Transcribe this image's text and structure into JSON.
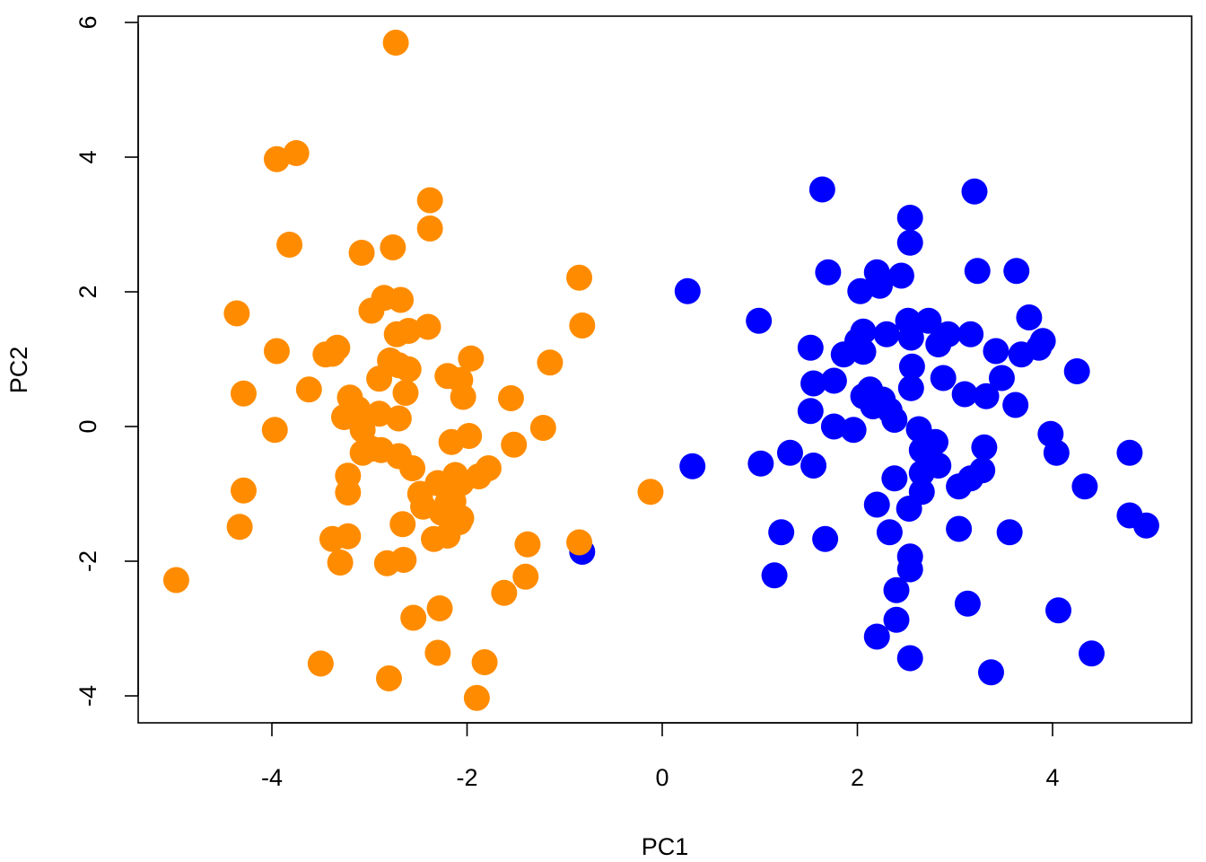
{
  "chart_data": {
    "type": "scatter",
    "title": "",
    "xlabel": "PC1",
    "ylabel": "PC2",
    "xlim": [
      -5.2,
      5.2
    ],
    "ylim": [
      -4.4,
      6.2
    ],
    "x_ticks": [
      -4,
      -2,
      0,
      2,
      4
    ],
    "y_ticks": [
      -4,
      -2,
      0,
      2,
      4,
      6
    ],
    "x_tick_labels": [
      "-4",
      "-2",
      "0",
      "2",
      "4"
    ],
    "y_tick_labels": [
      "-4",
      "-2",
      "0",
      "2",
      "4",
      "6"
    ],
    "grid": false,
    "legend": "none",
    "series": [
      {
        "color": "#0000ff",
        "points": [
          [
            -0.82,
            -1.86
          ],
          [
            0.26,
            2.01
          ],
          [
            0.31,
            -0.59
          ],
          [
            0.99,
            1.57
          ],
          [
            1.01,
            -0.55
          ],
          [
            1.15,
            -2.21
          ],
          [
            1.22,
            -1.57
          ],
          [
            1.31,
            -0.39
          ],
          [
            1.52,
            1.17
          ],
          [
            1.55,
            0.64
          ],
          [
            1.52,
            0.23
          ],
          [
            1.55,
            -0.58
          ],
          [
            1.64,
            3.52
          ],
          [
            1.7,
            2.29
          ],
          [
            1.67,
            -1.67
          ],
          [
            1.76,
            0.68
          ],
          [
            1.76,
            0.0
          ],
          [
            1.86,
            1.07
          ],
          [
            1.96,
            -0.05
          ],
          [
            2.0,
            1.27
          ],
          [
            2.03,
            2.01
          ],
          [
            2.06,
            1.11
          ],
          [
            2.06,
            1.41
          ],
          [
            2.06,
            0.45
          ],
          [
            2.13,
            0.55
          ],
          [
            2.16,
            0.3
          ],
          [
            2.2,
            2.29
          ],
          [
            2.23,
            2.09
          ],
          [
            2.2,
            -1.16
          ],
          [
            2.2,
            -3.12
          ],
          [
            2.26,
            0.4
          ],
          [
            2.3,
            1.37
          ],
          [
            2.33,
            0.24
          ],
          [
            2.33,
            -1.57
          ],
          [
            2.38,
            -0.77
          ],
          [
            2.38,
            0.1
          ],
          [
            2.4,
            -2.43
          ],
          [
            2.4,
            -2.87
          ],
          [
            2.45,
            2.24
          ],
          [
            2.52,
            1.57
          ],
          [
            2.54,
            3.1
          ],
          [
            2.54,
            2.73
          ],
          [
            2.55,
            1.32
          ],
          [
            2.55,
            0.57
          ],
          [
            2.56,
            0.89
          ],
          [
            2.53,
            -1.22
          ],
          [
            2.54,
            -1.93
          ],
          [
            2.54,
            -2.12
          ],
          [
            2.54,
            -3.44
          ],
          [
            2.63,
            -0.04
          ],
          [
            2.66,
            -0.35
          ],
          [
            2.66,
            -0.69
          ],
          [
            2.66,
            -0.97
          ],
          [
            2.73,
            1.57
          ],
          [
            2.8,
            -0.23
          ],
          [
            2.83,
            1.22
          ],
          [
            2.83,
            -0.58
          ],
          [
            2.88,
            0.72
          ],
          [
            2.93,
            1.37
          ],
          [
            3.04,
            -0.89
          ],
          [
            3.04,
            -1.52
          ],
          [
            3.1,
            0.48
          ],
          [
            3.13,
            -2.63
          ],
          [
            3.16,
            1.37
          ],
          [
            3.16,
            -0.77
          ],
          [
            3.2,
            3.49
          ],
          [
            3.23,
            2.31
          ],
          [
            3.28,
            -0.65
          ],
          [
            3.3,
            -0.31
          ],
          [
            3.32,
            0.45
          ],
          [
            3.37,
            -3.65
          ],
          [
            3.42,
            1.12
          ],
          [
            3.48,
            0.72
          ],
          [
            3.56,
            -1.57
          ],
          [
            3.63,
            2.31
          ],
          [
            3.62,
            0.32
          ],
          [
            3.68,
            1.07
          ],
          [
            3.76,
            1.62
          ],
          [
            3.86,
            1.17
          ],
          [
            3.9,
            1.27
          ],
          [
            3.98,
            -0.11
          ],
          [
            4.04,
            -0.39
          ],
          [
            4.06,
            -2.73
          ],
          [
            4.25,
            0.82
          ],
          [
            4.33,
            -0.89
          ],
          [
            4.4,
            -3.37
          ],
          [
            4.79,
            -0.39
          ],
          [
            4.79,
            -1.32
          ],
          [
            4.96,
            -1.47
          ]
        ]
      },
      {
        "color": "#ff8c00",
        "points": [
          [
            -4.98,
            -2.28
          ],
          [
            -4.36,
            1.68
          ],
          [
            -4.33,
            -1.49
          ],
          [
            -4.29,
            0.49
          ],
          [
            -4.29,
            -0.95
          ],
          [
            -3.95,
            3.97
          ],
          [
            -3.95,
            1.12
          ],
          [
            -3.97,
            -0.05
          ],
          [
            -3.75,
            4.06
          ],
          [
            -3.82,
            2.7
          ],
          [
            -3.62,
            0.55
          ],
          [
            -3.5,
            -3.52
          ],
          [
            -3.45,
            1.07
          ],
          [
            -3.38,
            1.08
          ],
          [
            -3.33,
            1.17
          ],
          [
            -3.38,
            -1.67
          ],
          [
            -3.3,
            -2.02
          ],
          [
            -3.22,
            -1.63
          ],
          [
            -3.26,
            0.14
          ],
          [
            -3.2,
            0.43
          ],
          [
            -3.22,
            -0.73
          ],
          [
            -3.22,
            -0.98
          ],
          [
            -3.12,
            0.26
          ],
          [
            -3.07,
            -0.05
          ],
          [
            -3.07,
            -0.39
          ],
          [
            -3.08,
            2.58
          ],
          [
            -2.98,
            -0.33
          ],
          [
            -2.98,
            1.72
          ],
          [
            -2.9,
            0.71
          ],
          [
            -2.9,
            0.19
          ],
          [
            -2.88,
            -0.35
          ],
          [
            -2.85,
            1.91
          ],
          [
            -2.82,
            -2.03
          ],
          [
            -2.8,
            -3.74
          ],
          [
            -2.79,
            0.98
          ],
          [
            -2.76,
            2.66
          ],
          [
            -2.73,
            5.7
          ],
          [
            -2.72,
            1.37
          ],
          [
            -2.68,
            1.88
          ],
          [
            -2.7,
            0.91
          ],
          [
            -2.7,
            0.12
          ],
          [
            -2.7,
            -0.44
          ],
          [
            -2.66,
            -1.45
          ],
          [
            -2.65,
            -1.98
          ],
          [
            -2.63,
            0.5
          ],
          [
            -2.6,
            0.85
          ],
          [
            -2.6,
            1.42
          ],
          [
            -2.56,
            -0.62
          ],
          [
            -2.55,
            -2.84
          ],
          [
            -2.48,
            -1.0
          ],
          [
            -2.45,
            -1.19
          ],
          [
            -2.4,
            1.48
          ],
          [
            -2.38,
            3.36
          ],
          [
            -2.38,
            2.94
          ],
          [
            -2.34,
            -1.67
          ],
          [
            -2.3,
            -3.36
          ],
          [
            -2.28,
            -2.7
          ],
          [
            -2.26,
            -1.28
          ],
          [
            -2.3,
            -0.84
          ],
          [
            -2.2,
            -1.13
          ],
          [
            -2.2,
            -1.62
          ],
          [
            -2.2,
            0.75
          ],
          [
            -2.16,
            -0.23
          ],
          [
            -2.14,
            -1.11
          ],
          [
            -2.12,
            -0.72
          ],
          [
            -2.08,
            -1.42
          ],
          [
            -2.07,
            0.69
          ],
          [
            -2.06,
            -1.36
          ],
          [
            -2.06,
            -0.84
          ],
          [
            -2.04,
            0.44
          ],
          [
            -1.98,
            -0.14
          ],
          [
            -1.96,
            1.01
          ],
          [
            -1.88,
            -0.74
          ],
          [
            -1.9,
            -4.03
          ],
          [
            -1.82,
            -3.5
          ],
          [
            -1.78,
            -0.62
          ],
          [
            -1.62,
            -2.47
          ],
          [
            -1.55,
            0.42
          ],
          [
            -1.52,
            -0.27
          ],
          [
            -1.4,
            -2.23
          ],
          [
            -1.38,
            -1.75
          ],
          [
            -1.22,
            -0.02
          ],
          [
            -1.15,
            0.95
          ],
          [
            -0.85,
            2.21
          ],
          [
            -0.82,
            1.5
          ],
          [
            -0.85,
            -1.72
          ],
          [
            -0.12,
            -0.97
          ]
        ]
      }
    ]
  }
}
